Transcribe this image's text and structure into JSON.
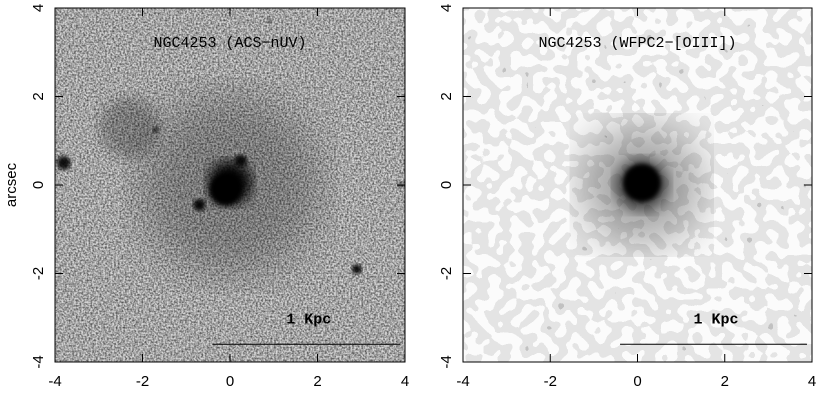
{
  "chart_data": [
    {
      "type": "image",
      "title": "NGC4253 (ACS−nUV)",
      "xlim": [
        -4,
        4
      ],
      "ylim": [
        -4,
        4
      ],
      "xticks": [
        -4,
        -2,
        0,
        2,
        4
      ],
      "yticks": [
        -4,
        -2,
        0,
        2,
        4
      ],
      "ylabel": "arcsec",
      "scale_label": "1 Kpc"
    },
    {
      "type": "image",
      "title": "NGC4253 (WFPC2−[OIII])",
      "xlim": [
        -4,
        4
      ],
      "ylim": [
        -4,
        4
      ],
      "xticks": [
        -4,
        -2,
        0,
        2,
        4
      ],
      "yticks": [
        -4,
        -2,
        0,
        2,
        4
      ],
      "scale_label": "1 Kpc"
    }
  ]
}
